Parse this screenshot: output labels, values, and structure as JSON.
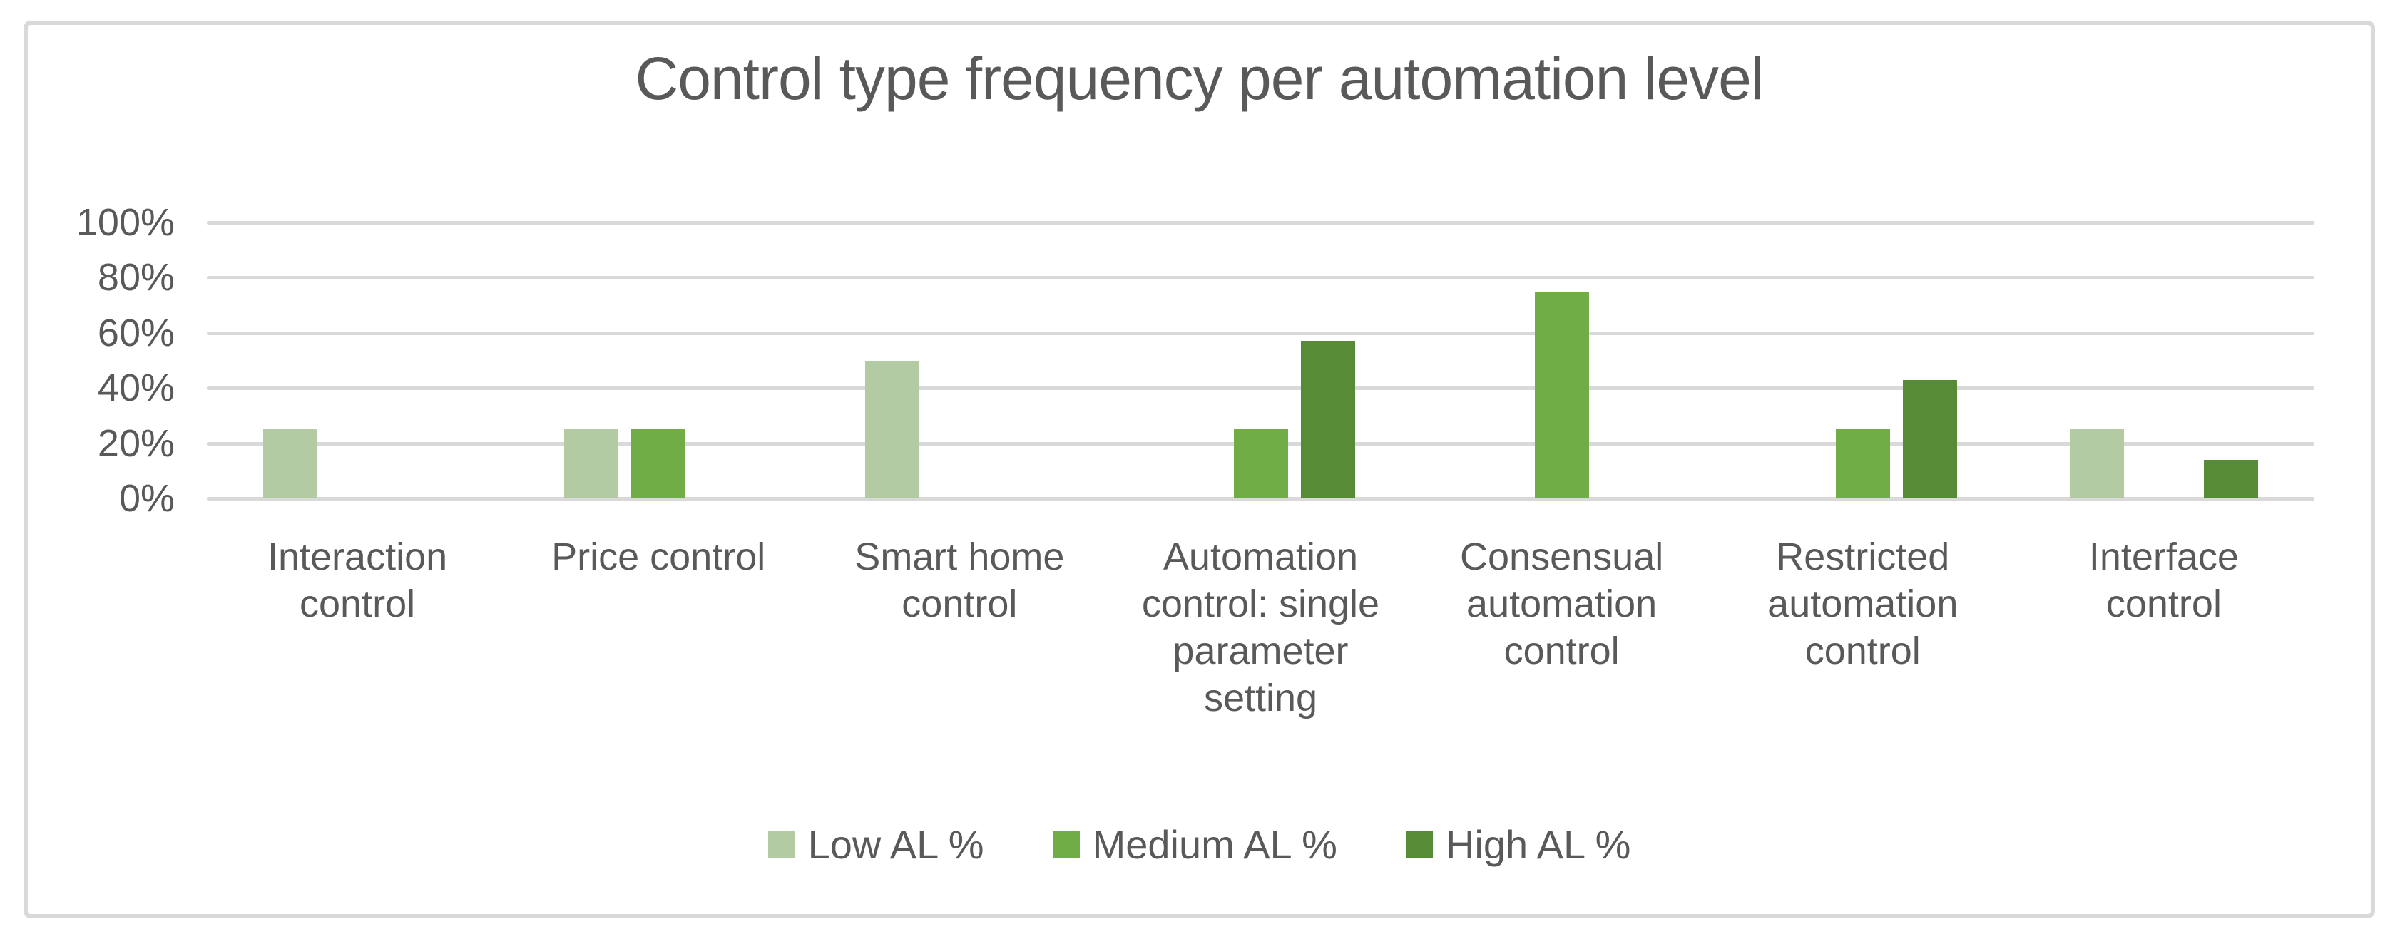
{
  "chart_data": {
    "type": "bar",
    "title": "Control type frequency per automation level",
    "categories": [
      "Interaction\ncontrol",
      "Price control",
      "Smart home\ncontrol",
      "Automation\ncontrol: single\nparameter\nsetting",
      "Consensual\nautomation\ncontrol",
      "Restricted\nautomation\ncontrol",
      "Interface\ncontrol"
    ],
    "series": [
      {
        "name": "Low AL %",
        "color": "#b3cba3",
        "values": [
          25,
          25,
          50,
          0,
          0,
          0,
          25
        ]
      },
      {
        "name": "Medium AL %",
        "color": "#70ad47",
        "values": [
          0,
          25,
          0,
          25,
          75,
          25,
          0
        ]
      },
      {
        "name": "High AL %",
        "color": "#578b36",
        "values": [
          0,
          0,
          0,
          57,
          0,
          43,
          14
        ]
      }
    ],
    "y_ticks": [
      "100%",
      "80%",
      "60%",
      "40%",
      "20%",
      "0%"
    ],
    "ylim": [
      0,
      100
    ],
    "grid": true,
    "legend_position": "bottom",
    "text_color": "#595959",
    "gridline_color": "#d9d9d9",
    "frame_color": "#d9d9d9"
  }
}
